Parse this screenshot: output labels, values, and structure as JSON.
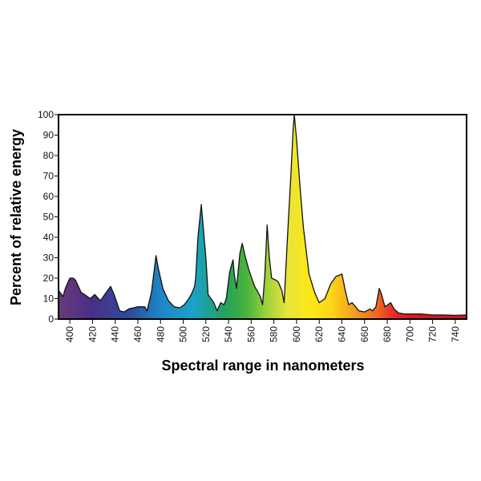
{
  "chart_data": {
    "type": "area",
    "xlabel": "Spectral range in nanometers",
    "ylabel": "Percent of relative energy",
    "xlim": [
      390,
      750
    ],
    "ylim": [
      0,
      100
    ],
    "x_ticks": [
      400,
      420,
      440,
      460,
      480,
      500,
      520,
      540,
      560,
      580,
      600,
      620,
      640,
      660,
      680,
      700,
      720,
      740
    ],
    "y_ticks": [
      0,
      10,
      20,
      30,
      40,
      50,
      60,
      70,
      80,
      90,
      100
    ],
    "grid": false,
    "legend": false,
    "fill": "visible-spectrum-gradient",
    "x": [
      390,
      394,
      396,
      400,
      403,
      405,
      410,
      413,
      418,
      422,
      427,
      432,
      436,
      439,
      444,
      448,
      452,
      460,
      466,
      468,
      472,
      474,
      476,
      478,
      482,
      487,
      492,
      497,
      501,
      505,
      508,
      510,
      511,
      513,
      516,
      520,
      522,
      527,
      530,
      533,
      536,
      538,
      541,
      544,
      545,
      547,
      550,
      552,
      555,
      558,
      563,
      568,
      570,
      572,
      574,
      576,
      578,
      582,
      584,
      587,
      589,
      592,
      595,
      597,
      598,
      600,
      603,
      606,
      611,
      616,
      620,
      625,
      630,
      635,
      636,
      640,
      643,
      646,
      649,
      655,
      660,
      665,
      667,
      670,
      673,
      675,
      678,
      683,
      686,
      690,
      695,
      700,
      710,
      720,
      730,
      740,
      750
    ],
    "values": [
      14,
      11,
      15,
      20,
      20,
      19,
      13,
      12,
      10,
      12,
      9,
      13,
      16,
      12,
      4,
      3.5,
      5,
      6,
      6,
      4,
      13,
      22,
      31,
      25,
      15,
      9,
      6,
      5.5,
      7,
      10,
      13,
      16,
      20,
      40,
      56,
      30,
      12,
      8,
      4,
      8,
      7,
      10,
      23,
      29,
      22,
      15,
      32,
      37,
      30,
      24,
      16,
      11,
      7,
      21,
      46,
      30,
      20,
      19,
      18,
      14,
      8,
      40,
      70,
      93,
      100,
      88,
      65,
      45,
      22,
      13,
      8,
      10,
      17,
      21,
      21,
      22,
      14,
      7,
      8,
      4,
      3.5,
      5,
      4,
      6,
      15,
      12,
      6,
      8,
      5,
      3,
      2.5,
      2.5,
      2.5,
      2,
      2,
      1.8,
      2
    ]
  }
}
